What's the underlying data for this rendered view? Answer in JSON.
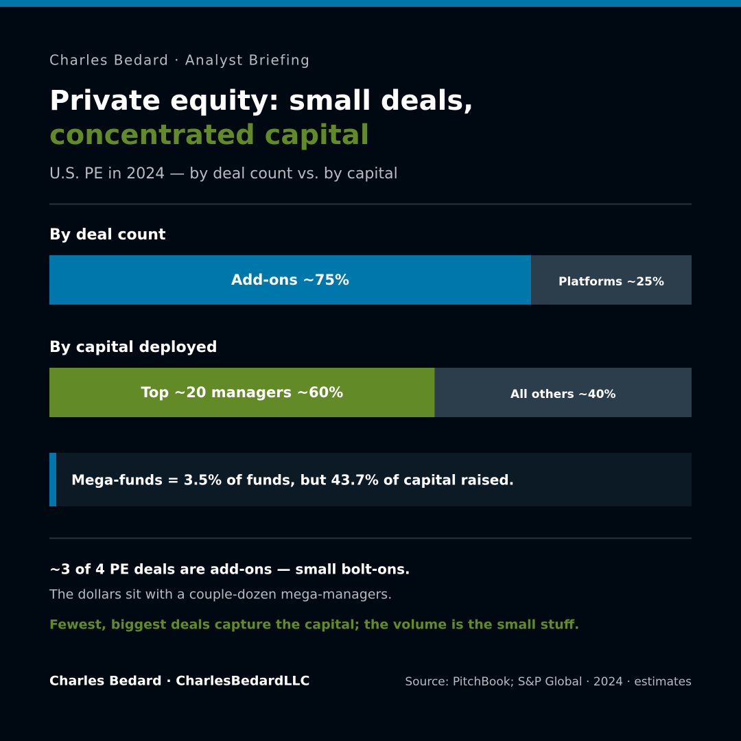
{
  "header": {
    "kicker": "Charles Bedard · Analyst Briefing",
    "title_line1": "Private equity: small deals,",
    "title_line2": "concentrated capital",
    "subtitle": "U.S. PE in 2024 — by deal count vs. by capital"
  },
  "chart_data": [
    {
      "type": "stacked-bar",
      "title": "By deal count",
      "values": [
        75,
        25
      ],
      "value_labels": [
        "Add-ons ~75%",
        "Platforms ~25%"
      ],
      "colors": [
        "#0077aa",
        "#2c3e4c"
      ],
      "xlim": [
        0,
        100
      ]
    },
    {
      "type": "stacked-bar",
      "title": "By capital deployed",
      "values": [
        60,
        40
      ],
      "value_labels": [
        "Top ~20 managers ~60%",
        "All others ~40%"
      ],
      "colors": [
        "#628b28",
        "#2c3e4c"
      ],
      "xlim": [
        0,
        100
      ]
    }
  ],
  "callout": "Mega-funds = 3.5% of funds, but 43.7% of capital raised.",
  "takeaway": {
    "headline": "~3 of 4 PE deals are add-ons — small bolt-ons.",
    "detail": "The dollars sit with a couple-dozen mega-managers.",
    "conclusion": "Fewest, biggest deals capture the capital; the volume is the small stuff."
  },
  "footer": {
    "author": "Charles Bedard · CharlesBedardLLC",
    "source": "Source: PitchBook; S&P Global · 2024 · estimates"
  }
}
